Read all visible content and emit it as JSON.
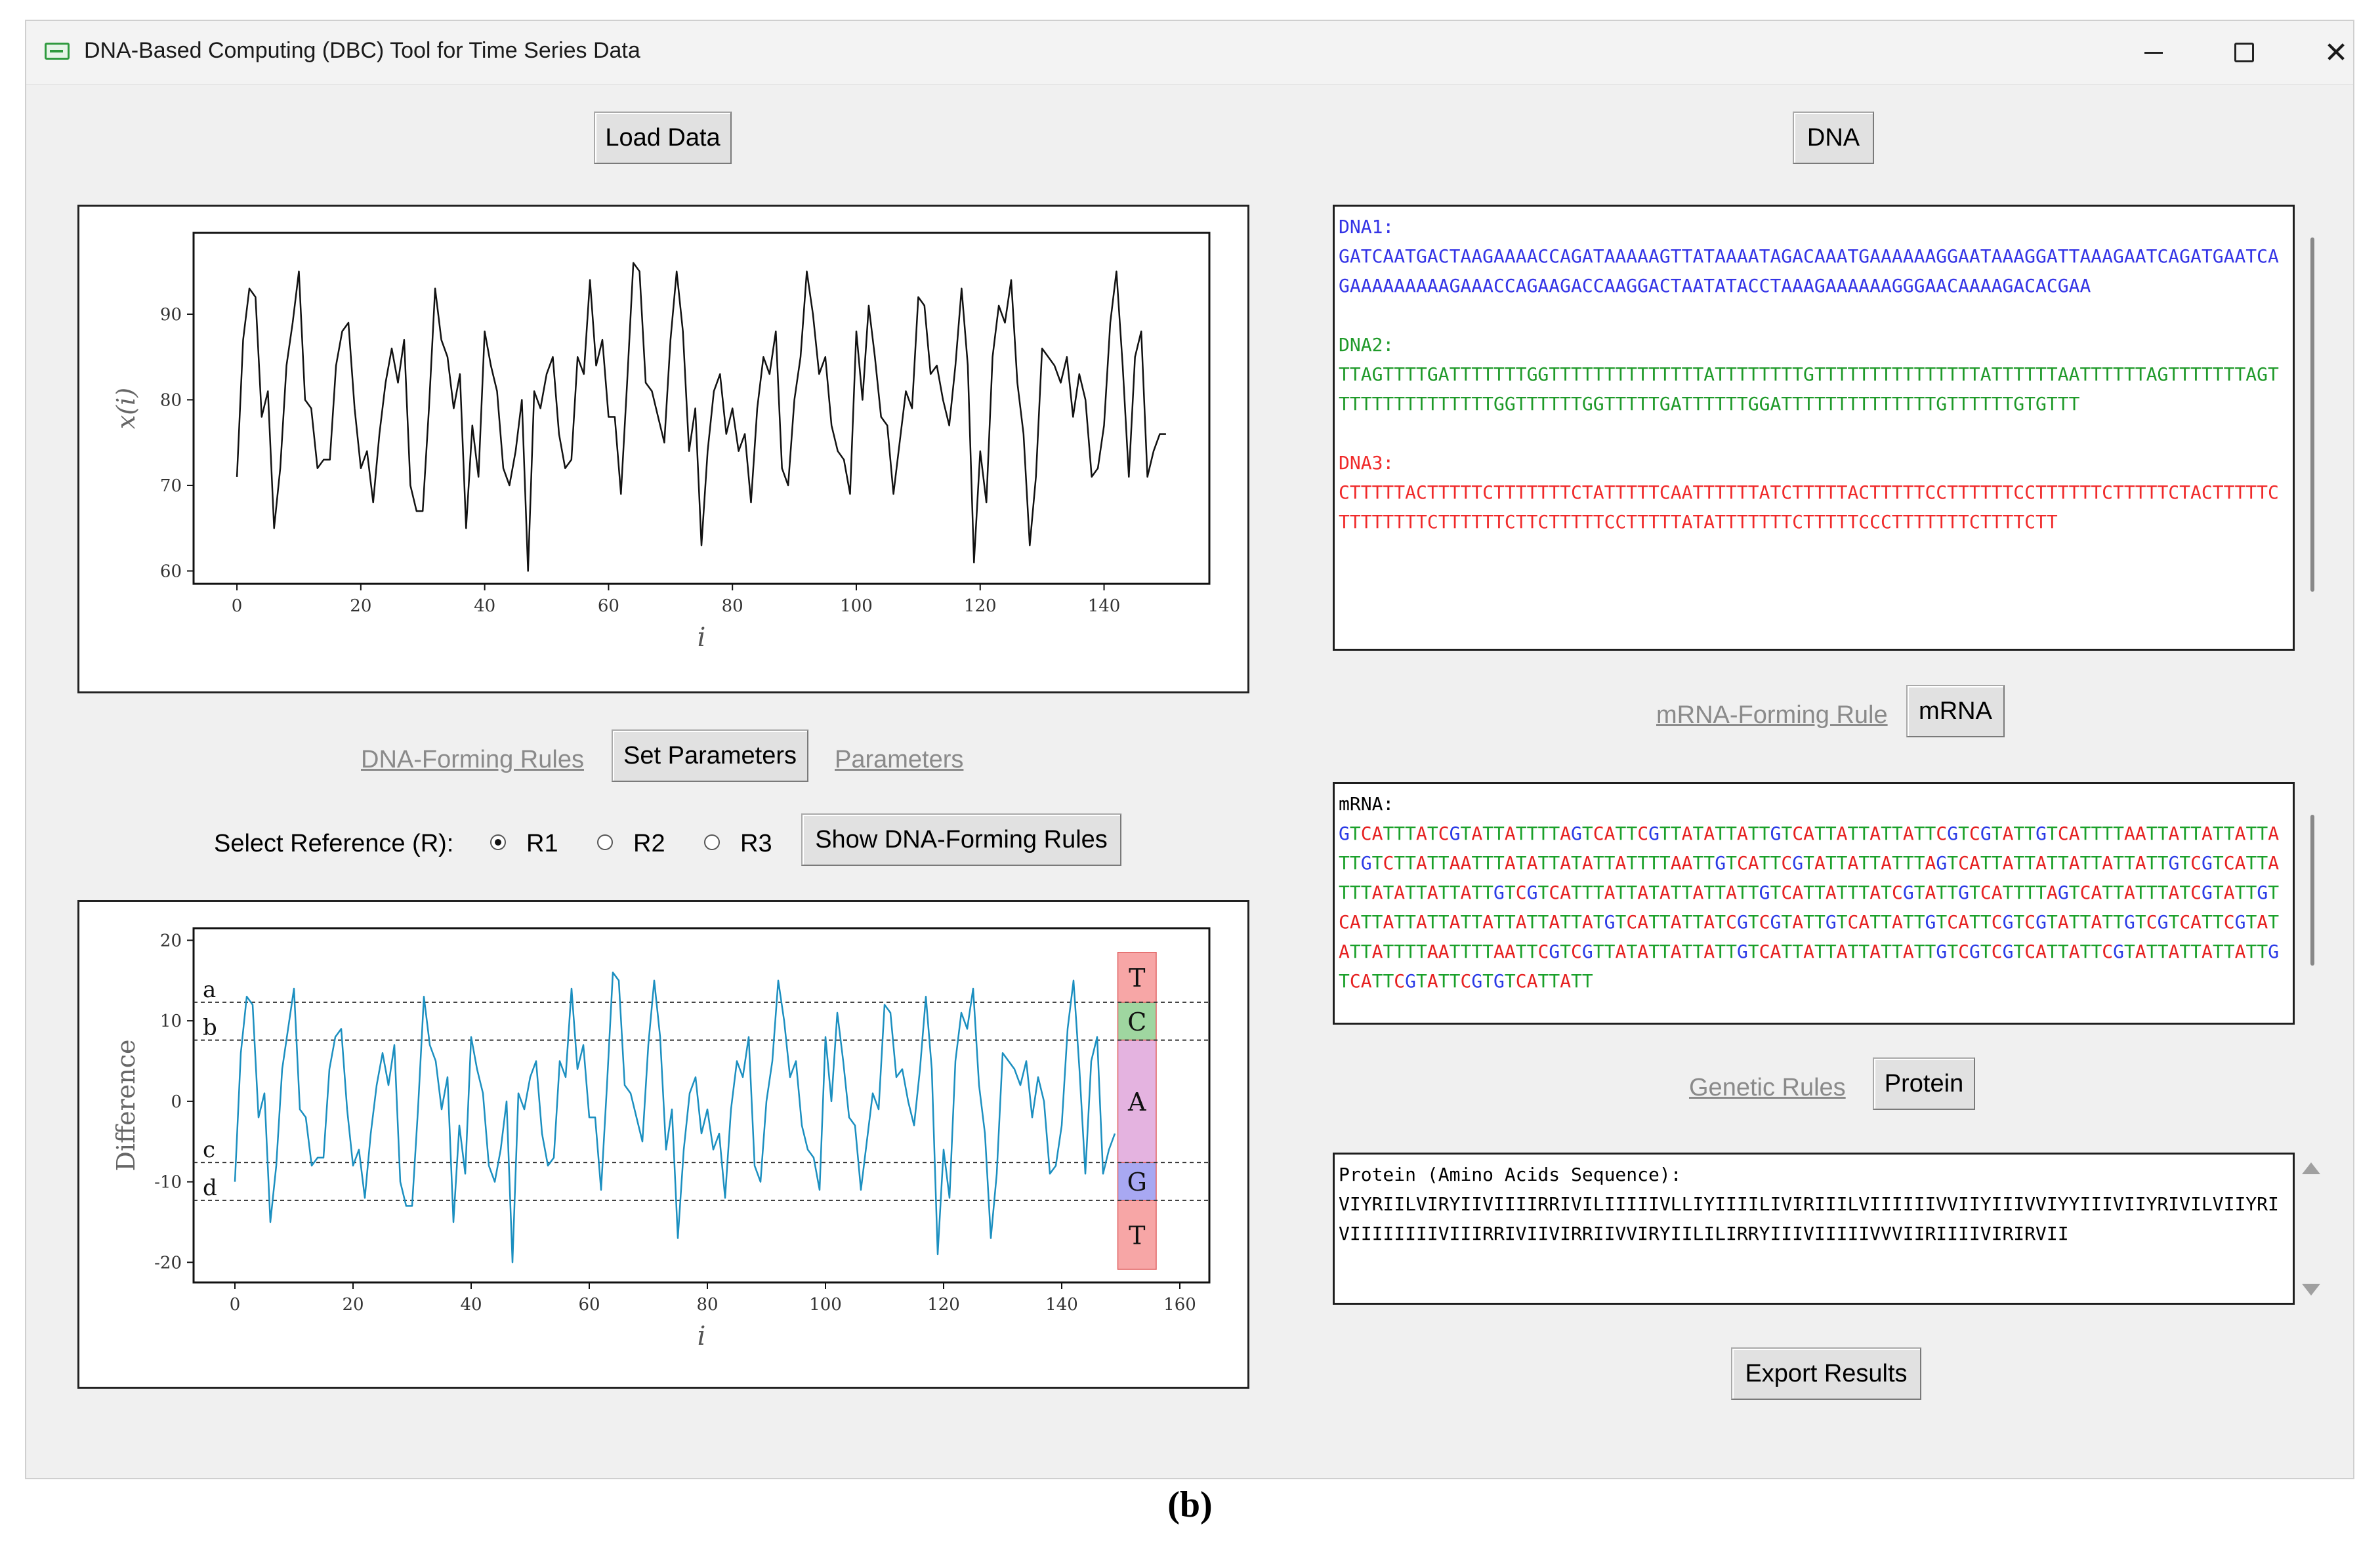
{
  "window": {
    "title": "DNA-Based Computing (DBC) Tool for Time Series Data",
    "close_glyph": "✕"
  },
  "buttons": {
    "load_data": "Load Data",
    "dna": "DNA",
    "set_parameters": "Set Parameters",
    "show_rules": "Show DNA-Forming Rules",
    "mrna": "mRNA",
    "protein": "Protein",
    "export": "Export Results"
  },
  "links": {
    "dna_forming_rules": "DNA-Forming Rules",
    "parameters": "Parameters",
    "mrna_forming_rule": "mRNA-Forming Rule",
    "genetic_rules": "Genetic Rules"
  },
  "reference": {
    "label": "Select Reference (R):",
    "options": [
      "R1",
      "R2",
      "R3"
    ],
    "selected": "R1"
  },
  "dna_output": {
    "dna1_label": "DNA1:",
    "dna1": "GATCAATGACTAAGAAAACCAGATAAAAAGTTATAAAATAGACAAATGAAAAAAGGAATAAAGGATTAAAGAATCAGATGAATCAGAAAAAAAAAGAAACCAGAAGACCAAGGACTAATATACCTAAAGAAAAAAGGGAACAAAAGACACGAA",
    "dna2_label": "DNA2:",
    "dna2": "TTAGTTTTGATTTTTTTGGTTTTTTTTTTTTTTATTTTTTTTGTTTTTTTTTTTTTTTATTTTTTAATTTTTTAGTTTTTTTAGTTTTTTTTTTTTTTTGGTTTTTTGGTTTTTGATTTTTTGGATTTTTTTTTTTTTTGTTTTTTGTGTTT",
    "dna3_label": "DNA3:",
    "dna3": "CTTTTTACTTTTTCTTTTTTTCTATTTTTCAATTTTTTATCTTTTTACTTTTTCCTTTTTTCCTTTTTTCTTTTTCTACTTTTTCTTTTTTTTCTTTTTTCTTCTTTTTCCTTTTTATATTTTTTTCTTTTTCCCTTTTTTTCTTTTCTT",
    "colors": {
      "dna1": "#3333e6",
      "dna2": "#1f9a2a",
      "dna3": "#f02a2a"
    }
  },
  "mrna_output": {
    "label": "mRNA:",
    "sequence": "GTCATTTATCGTATTATTTTAGTCATTCGTTATATTATTGTCATTATTATTATTCGTCGTATTGTCATTTTAATTATTATTATTATTGTCTTATTAATTTATATTATATTATTTTAATTGTCATTCGTATTATTATTTAGTCATTATTATTATTATTATTGTCGTCATTATTTATATTATTATTGTCGTCATTTATTATATTATTATTGTCATTATTTATCGTATTGTCATTTTAGTCATTATTTATCGTATTGTCATTATTATTATTATTATTATTATGTCATTATTATCGTCGTATTGTCATTATTGTCATTCGTCGTATTATTGTCGTCATTCGTATATTATTTTAATTTTAATTCGTCGTTATATTATTATTGTCATTATTATTATTATTGTCGTCGTCATTATTCGTATTATTATTATTGTCATTCGTATTCGTGTCATTATT",
    "colors": {
      "A": "#e62020",
      "T": "#1aa02a",
      "C": "#e62020",
      "G": "#2a3ae6"
    }
  },
  "protein_output": {
    "label": "Protein (Amino Acids Sequence):",
    "sequence": "VIYRIILVIRYIIVIIIIRRIVILIIIIIVLLIYIIIILIVIRIIILVIIIIIIVVIIYIIIVVIYYIIIVIIYRIVILVIIYRIVIIIIIIIIVIIIRRIVIIVIRRIIVVIRYIILILIRRYIIIVIIIIIVVVIIRIIIIVIRIRVII"
  },
  "chart_data": [
    {
      "type": "line",
      "xlabel": "i",
      "ylabel": "x(i)",
      "xlim": [
        -7,
        157
      ],
      "ylim": [
        58.5,
        99.5
      ],
      "xticks": [
        0,
        20,
        40,
        60,
        80,
        100,
        120,
        140
      ],
      "yticks": [
        60,
        70,
        80,
        90
      ],
      "line_color": "#111111",
      "values": [
        71,
        87,
        93,
        92,
        78,
        81,
        65,
        72,
        84,
        89,
        95,
        80,
        79,
        72,
        73,
        73,
        84,
        88,
        89,
        79,
        72,
        74,
        68,
        76,
        82,
        86,
        82,
        87,
        70,
        67,
        67,
        79,
        93,
        87,
        85,
        79,
        83,
        65,
        77,
        71,
        88,
        84,
        81,
        72,
        70,
        74,
        80,
        60,
        81,
        79,
        83,
        85,
        76,
        72,
        73,
        85,
        83,
        94,
        84,
        87,
        78,
        78,
        69,
        82,
        96,
        95,
        82,
        81,
        78,
        75,
        87,
        95,
        88,
        74,
        79,
        63,
        74,
        81,
        83,
        76,
        79,
        74,
        76,
        68,
        79,
        85,
        83,
        88,
        72,
        70,
        80,
        85,
        95,
        90,
        83,
        85,
        77,
        74,
        73,
        69,
        88,
        80,
        91,
        85,
        78,
        77,
        69,
        75,
        81,
        79,
        92,
        91,
        83,
        84,
        80,
        77,
        84,
        93,
        84,
        61,
        74,
        68,
        85,
        91,
        89,
        94,
        82,
        76,
        63,
        71,
        86,
        85,
        84,
        82,
        85,
        78,
        83,
        80,
        71,
        72,
        77,
        89,
        95,
        84,
        71,
        85,
        88,
        71,
        74,
        76,
        76
      ]
    },
    {
      "type": "line",
      "xlabel": "i",
      "ylabel": "Difference",
      "xlim": [
        -7,
        165
      ],
      "ylim": [
        -22.5,
        21.5
      ],
      "xticks": [
        0,
        20,
        40,
        60,
        80,
        100,
        120,
        140,
        160
      ],
      "yticks": [
        -20,
        -10,
        0,
        10,
        20
      ],
      "line_color": "#1b8fc0",
      "thresholds": [
        {
          "name": "a",
          "value": 12.3
        },
        {
          "name": "b",
          "value": 7.6
        },
        {
          "name": "c",
          "value": -7.6
        },
        {
          "name": "d",
          "value": -12.3
        }
      ],
      "bands": [
        {
          "label": "T",
          "from": 12.3,
          "to": 18.5,
          "color": "#f7a6a6"
        },
        {
          "label": "C",
          "from": 7.6,
          "to": 12.3,
          "color": "#9fd6a0"
        },
        {
          "label": "A",
          "from": -7.6,
          "to": 7.6,
          "color": "#e4b3e0"
        },
        {
          "label": "G",
          "from": -12.3,
          "to": -7.6,
          "color": "#a8a8f2"
        },
        {
          "label": "T",
          "from": -21.5,
          "to": -12.3,
          "color": "#f7a6a6"
        }
      ],
      "values": [
        -10,
        6,
        13,
        12,
        -2,
        1,
        -15,
        -8,
        4,
        9,
        14,
        -1,
        -2,
        -8,
        -7,
        -7,
        4,
        8,
        9,
        -1,
        -8,
        -6,
        -12,
        -4,
        2,
        6,
        2,
        7,
        -10,
        -13,
        -13,
        -1,
        13,
        7,
        5,
        -1,
        3,
        -15,
        -3,
        -9,
        8,
        4,
        1,
        -8,
        -10,
        -6,
        0,
        -20,
        1,
        -1,
        3,
        5,
        -4,
        -8,
        -7,
        5,
        3,
        14,
        4,
        7,
        -2,
        -2,
        -11,
        2,
        16,
        15,
        2,
        1,
        -2,
        -5,
        7,
        15,
        8,
        -6,
        -1,
        -17,
        -6,
        1,
        3,
        -4,
        -1,
        -6,
        -4,
        -12,
        -1,
        5,
        3,
        8,
        -8,
        -10,
        0,
        5,
        15,
        10,
        3,
        5,
        -3,
        -6,
        -7,
        -11,
        8,
        0,
        11,
        5,
        -2,
        -3,
        -11,
        -5,
        1,
        -1,
        12,
        11,
        3,
        4,
        0,
        -3,
        4,
        13,
        4,
        -19,
        -6,
        -12,
        5,
        11,
        9,
        14,
        2,
        -4,
        -17,
        -9,
        6,
        5,
        4,
        2,
        5,
        -2,
        3,
        0,
        -9,
        -8,
        -3,
        9,
        15,
        4,
        -9,
        5,
        8,
        -9,
        -6,
        -4
      ]
    }
  ],
  "caption": "(b)"
}
